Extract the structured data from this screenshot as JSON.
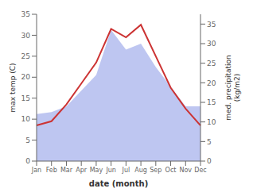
{
  "chart_data": {
    "type": "line",
    "xlabel": "date (month)",
    "ylabel": "max temp (C)",
    "y2label": "med. precipitation\n(kg/m2)",
    "categories": [
      "Jan",
      "Feb",
      "Mar",
      "Apr",
      "May",
      "Jun",
      "Jul",
      "Aug",
      "Sep",
      "Oct",
      "Nov",
      "Dec"
    ],
    "series": [
      {
        "type": "area",
        "axis": "y2",
        "color": "#b3bcef",
        "values": [
          12.0,
          12.5,
          14.0,
          18.0,
          22.0,
          33.5,
          28.5,
          30.0,
          24.0,
          19.0,
          14.0,
          14.0
        ]
      },
      {
        "type": "line",
        "color": "#cc3333",
        "values": [
          8.5,
          9.5,
          13.5,
          18.5,
          23.5,
          31.5,
          29.5,
          32.5,
          25.0,
          17.5,
          12.5,
          8.5
        ]
      }
    ],
    "ylim": [
      0,
      35
    ],
    "yticks": [
      0,
      5,
      10,
      15,
      20,
      25,
      30,
      35
    ],
    "y2lim": [
      0,
      37.5
    ],
    "y2ticks": [
      0,
      5,
      10,
      15,
      20,
      25,
      30,
      35
    ],
    "grid": false
  }
}
